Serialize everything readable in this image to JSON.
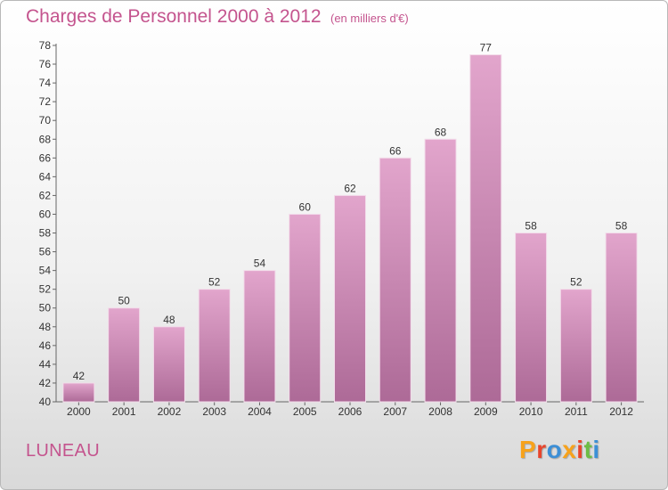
{
  "header": {
    "title": "Charges de Personnel 2000 à 2012",
    "subtitle": "(en milliers d'€)"
  },
  "footer": {
    "commune": "LUNEAU",
    "logo_text": "Proxiti",
    "logo_colors": [
      "#f7a21b",
      "#e8452c",
      "#3c8fd6",
      "#f7a21b",
      "#e8452c",
      "#6cbd45",
      "#3c8fd6"
    ]
  },
  "colors": {
    "accent": "#c4548e",
    "bar_top": "#e2a5cc",
    "bar_bottom": "#ad6a97"
  },
  "chart_data": {
    "type": "bar",
    "title": "Charges de Personnel 2000 à 2012",
    "subtitle": "(en milliers d'€)",
    "categories": [
      "2000",
      "2001",
      "2002",
      "2003",
      "2004",
      "2005",
      "2006",
      "2007",
      "2008",
      "2009",
      "2010",
      "2011",
      "2012"
    ],
    "values": [
      42,
      50,
      48,
      52,
      54,
      60,
      62,
      66,
      68,
      77,
      58,
      52,
      58
    ],
    "data_labels": [
      "42",
      "50",
      "48",
      "52",
      "54",
      "60",
      "62",
      "66",
      "68",
      "77",
      "58",
      "52",
      "58"
    ],
    "xlabel": "",
    "ylabel": "",
    "ylim": [
      40,
      78
    ],
    "yticks": [
      40,
      42,
      44,
      46,
      48,
      50,
      52,
      54,
      56,
      58,
      60,
      62,
      64,
      66,
      68,
      70,
      72,
      74,
      76,
      78
    ],
    "grid": false
  }
}
